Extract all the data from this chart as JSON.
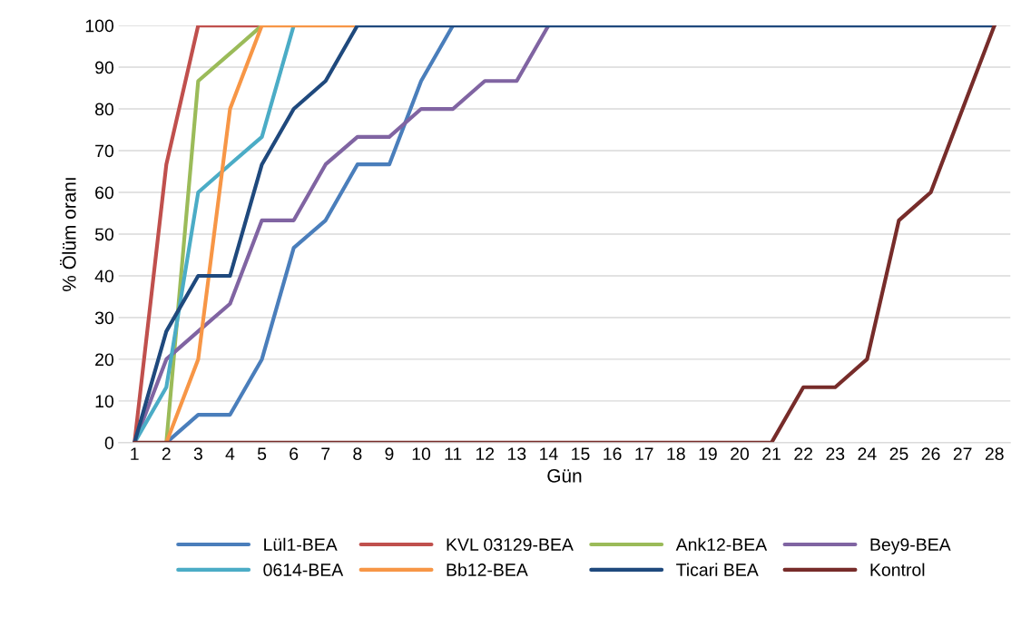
{
  "chart_data": {
    "type": "line",
    "xlabel": "Gün",
    "ylabel": "% Ölüm oranı",
    "categories": [
      "1",
      "2",
      "3",
      "4",
      "5",
      "6",
      "7",
      "8",
      "9",
      "10",
      "11",
      "12",
      "13",
      "14",
      "15",
      "16",
      "17",
      "18",
      "19",
      "20",
      "21",
      "22",
      "23",
      "24",
      "25",
      "26",
      "27",
      "28"
    ],
    "ylim": [
      0,
      100
    ],
    "yticks": [
      0,
      10,
      20,
      30,
      40,
      50,
      60,
      70,
      80,
      90,
      100
    ],
    "grid": "y",
    "legend": "bottom",
    "marker": "none",
    "line_style": "solid",
    "series": [
      {
        "name": "Lül1-BEA",
        "color": "#4a7ebb",
        "values": [
          null,
          0,
          6.7,
          6.7,
          20,
          46.7,
          53.3,
          66.7,
          66.7,
          86.7,
          100,
          null,
          null,
          null,
          null,
          null,
          null,
          null,
          null,
          null,
          null,
          null,
          null,
          null,
          null,
          null,
          null,
          null
        ]
      },
      {
        "name": "KVL 03129-BEA",
        "color": "#c0504d",
        "values": [
          0,
          66.7,
          100,
          100,
          100,
          null,
          null,
          null,
          null,
          null,
          null,
          null,
          null,
          null,
          null,
          null,
          null,
          null,
          null,
          null,
          null,
          null,
          null,
          null,
          null,
          null,
          null,
          null
        ]
      },
      {
        "name": "Ank12-BEA",
        "color": "#9bbb59",
        "values": [
          null,
          0,
          86.7,
          93.3,
          100,
          null,
          null,
          null,
          null,
          null,
          null,
          null,
          null,
          null,
          null,
          null,
          null,
          null,
          null,
          null,
          null,
          null,
          null,
          null,
          null,
          null,
          null,
          null
        ]
      },
      {
        "name": "Bey9-BEA",
        "color": "#8064a2",
        "values": [
          0,
          20,
          26.7,
          33.3,
          53.3,
          53.3,
          66.7,
          73.3,
          73.3,
          80,
          80,
          86.7,
          86.7,
          100,
          null,
          null,
          null,
          null,
          null,
          null,
          null,
          null,
          null,
          null,
          null,
          null,
          null,
          null
        ]
      },
      {
        "name": "0614-BEA",
        "color": "#4bacc6",
        "values": [
          0,
          13.3,
          60,
          66.7,
          73.3,
          100,
          null,
          null,
          null,
          null,
          null,
          null,
          null,
          null,
          null,
          null,
          null,
          null,
          null,
          null,
          null,
          null,
          null,
          null,
          null,
          null,
          null,
          null
        ]
      },
      {
        "name": "Bb12-BEA",
        "color": "#f79646",
        "values": [
          null,
          0,
          20,
          80,
          100,
          100,
          100,
          100,
          null,
          null,
          null,
          null,
          null,
          null,
          null,
          null,
          null,
          null,
          null,
          null,
          null,
          null,
          null,
          null,
          null,
          null,
          null,
          null
        ]
      },
      {
        "name": "Ticari BEA",
        "color": "#1f497d",
        "values": [
          0,
          26.7,
          40,
          40,
          66.7,
          80,
          86.7,
          100,
          100,
          100,
          100,
          100,
          100,
          100,
          100,
          100,
          100,
          100,
          100,
          100,
          100,
          100,
          100,
          100,
          100,
          100,
          100,
          100
        ]
      },
      {
        "name": "Kontrol",
        "color": "#772c2a",
        "values": [
          0,
          0,
          0,
          0,
          0,
          0,
          0,
          0,
          0,
          0,
          0,
          0,
          0,
          0,
          0,
          0,
          0,
          0,
          0,
          0,
          0,
          13.3,
          13.3,
          20,
          53.3,
          60,
          80,
          100
        ]
      }
    ]
  }
}
